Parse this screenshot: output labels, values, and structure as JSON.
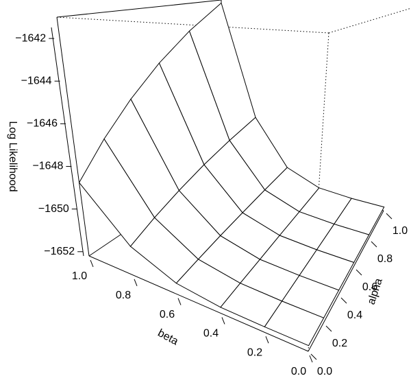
{
  "chart_data": {
    "type": "surface",
    "xlabel": "beta",
    "ylabel": "alpha",
    "zlabel": "Log Likelihood",
    "x": [
      0,
      0.2,
      0.4,
      0.6,
      0.8,
      1
    ],
    "y": [
      0,
      0.2,
      0.4,
      0.6,
      0.8,
      1
    ],
    "z": [
      [
        -1652,
        -1652,
        -1652,
        -1652,
        -1652,
        -1652
      ],
      [
        -1652,
        -1652,
        -1652,
        -1652,
        -1652,
        -1652
      ],
      [
        -1651.97,
        -1651.95,
        -1651.94,
        -1651.92,
        -1651.91,
        -1651.89
      ],
      [
        -1651.75,
        -1651.63,
        -1651.51,
        -1651.4,
        -1651.28,
        -1651.16
      ],
      [
        -1650.94,
        -1650.44,
        -1649.95,
        -1649.45,
        -1648.96,
        -1648.46
      ],
      [
        -1648.76,
        -1647.25,
        -1645.74,
        -1644.22,
        -1642.71,
        -1641.2
      ]
    ],
    "xlim": [
      0,
      1
    ],
    "ylim": [
      0,
      1
    ],
    "zlim": [
      -1652.2,
      -1641
    ],
    "xticks": [
      {
        "value": 0,
        "label": "0.0"
      },
      0.2,
      0.4,
      0.6,
      0.8,
      {
        "value": 1,
        "label": "1.0"
      }
    ],
    "yticks": [
      {
        "value": 0,
        "label": "0.0"
      },
      0.2,
      0.4,
      0.6,
      0.8,
      {
        "value": 1,
        "label": "1.0"
      }
    ],
    "zticks": [
      {
        "value": -1652,
        "label": "−1652"
      },
      {
        "value": -1650,
        "label": "−1650"
      },
      {
        "value": -1648,
        "label": "−1648"
      },
      {
        "value": -1646,
        "label": "−1646"
      },
      {
        "value": -1644,
        "label": "−1644"
      },
      {
        "value": -1642,
        "label": "−1642"
      }
    ],
    "color": "#ffffff"
  }
}
